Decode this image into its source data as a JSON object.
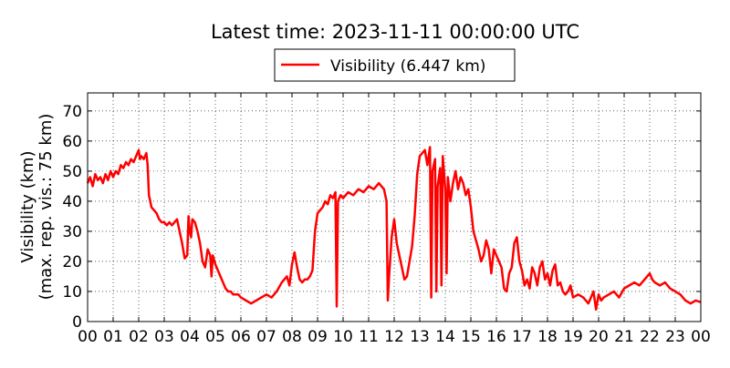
{
  "chart_data": {
    "type": "line",
    "title": "Latest time: 2023-11-11 00:00:00 UTC",
    "ylabel_line1": "Visibility (km)",
    "ylabel_line2": "(max. rep. vis.: 75 km)",
    "xlabel": "",
    "ylim": [
      0,
      76
    ],
    "xlim": [
      0,
      24
    ],
    "grid": true,
    "legend_placement": "top-center",
    "x_ticks": [
      "00",
      "01",
      "02",
      "03",
      "04",
      "05",
      "06",
      "07",
      "08",
      "09",
      "10",
      "11",
      "12",
      "13",
      "14",
      "15",
      "16",
      "17",
      "18",
      "19",
      "20",
      "21",
      "22",
      "23",
      "00"
    ],
    "y_ticks": [
      0,
      10,
      20,
      30,
      40,
      50,
      60,
      70
    ],
    "series": [
      {
        "name": "Visibility (6.447 km)",
        "color": "#ff0000",
        "x": [
          0,
          0.1,
          0.2,
          0.3,
          0.4,
          0.5,
          0.6,
          0.7,
          0.8,
          0.9,
          1.0,
          1.1,
          1.2,
          1.3,
          1.4,
          1.5,
          1.6,
          1.7,
          1.8,
          1.9,
          2.0,
          2.05,
          2.1,
          2.2,
          2.3,
          2.35,
          2.4,
          2.5,
          2.6,
          2.7,
          2.8,
          2.9,
          3.0,
          3.1,
          3.2,
          3.3,
          3.4,
          3.5,
          3.6,
          3.7,
          3.8,
          3.9,
          3.95,
          4.0,
          4.05,
          4.1,
          4.2,
          4.3,
          4.4,
          4.5,
          4.6,
          4.7,
          4.8,
          4.85,
          4.9,
          5.0,
          5.1,
          5.2,
          5.3,
          5.4,
          5.5,
          5.6,
          5.7,
          5.8,
          5.9,
          6.0,
          6.2,
          6.4,
          6.6,
          6.8,
          7.0,
          7.2,
          7.4,
          7.6,
          7.8,
          7.9,
          8.0,
          8.1,
          8.2,
          8.3,
          8.4,
          8.5,
          8.6,
          8.7,
          8.8,
          8.9,
          9.0,
          9.1,
          9.2,
          9.3,
          9.4,
          9.5,
          9.6,
          9.7,
          9.75,
          9.8,
          9.9,
          10.0,
          10.2,
          10.4,
          10.6,
          10.8,
          11.0,
          11.2,
          11.4,
          11.5,
          11.6,
          11.7,
          11.75,
          11.8,
          11.9,
          12.0,
          12.1,
          12.2,
          12.3,
          12.4,
          12.5,
          12.6,
          12.7,
          12.8,
          12.9,
          13.0,
          13.1,
          13.2,
          13.3,
          13.4,
          13.45,
          13.5,
          13.6,
          13.65,
          13.7,
          13.8,
          13.85,
          13.9,
          14.0,
          14.05,
          14.1,
          14.2,
          14.3,
          14.4,
          14.5,
          14.6,
          14.7,
          14.8,
          14.9,
          15.0,
          15.1,
          15.2,
          15.3,
          15.4,
          15.5,
          15.6,
          15.7,
          15.8,
          15.9,
          16.0,
          16.1,
          16.2,
          16.3,
          16.4,
          16.5,
          16.6,
          16.7,
          16.8,
          16.9,
          17.0,
          17.1,
          17.2,
          17.3,
          17.4,
          17.5,
          17.6,
          17.7,
          17.8,
          17.9,
          18.0,
          18.1,
          18.2,
          18.3,
          18.4,
          18.5,
          18.6,
          18.7,
          18.8,
          18.9,
          19.0,
          19.2,
          19.4,
          19.6,
          19.8,
          19.9,
          20.0,
          20.1,
          20.2,
          20.4,
          20.6,
          20.8,
          21.0,
          21.2,
          21.4,
          21.6,
          21.8,
          22.0,
          22.1,
          22.2,
          22.4,
          22.6,
          22.8,
          23.0,
          23.2,
          23.4,
          23.6,
          23.8,
          24.0
        ],
        "y": [
          46,
          48,
          45,
          49,
          47,
          48,
          46,
          49,
          47,
          50,
          48,
          50,
          49,
          52,
          51,
          53,
          52,
          54,
          53,
          55,
          57,
          54,
          55,
          54,
          56,
          52,
          42,
          38,
          37,
          36,
          34,
          33,
          33,
          32,
          33,
          32,
          33,
          34,
          30,
          26,
          21,
          22,
          35,
          30,
          28,
          34,
          33,
          30,
          26,
          20,
          18,
          24,
          22,
          15,
          22,
          19,
          17,
          15,
          13,
          11,
          10,
          10,
          9,
          9,
          9,
          8,
          7,
          6,
          7,
          8,
          9,
          8,
          10,
          13,
          15,
          12,
          19,
          23,
          18,
          14,
          13,
          14,
          14,
          15,
          17,
          30,
          36,
          37,
          38,
          40,
          39,
          42,
          41,
          43,
          5,
          40,
          42,
          41,
          43,
          42,
          44,
          43,
          45,
          44,
          46,
          45,
          44,
          40,
          7,
          15,
          28,
          34,
          26,
          22,
          18,
          14,
          15,
          20,
          25,
          35,
          49,
          55,
          56,
          57,
          52,
          58,
          8,
          50,
          54,
          10,
          45,
          51,
          12,
          55,
          44,
          16,
          48,
          40,
          46,
          50,
          44,
          48,
          46,
          42,
          44,
          38,
          30,
          27,
          24,
          20,
          22,
          27,
          24,
          16,
          24,
          22,
          20,
          18,
          11,
          10,
          16,
          18,
          26,
          28,
          20,
          17,
          12,
          14,
          11,
          18,
          16,
          12,
          18,
          20,
          14,
          16,
          12,
          17,
          19,
          12,
          13,
          10,
          9,
          10,
          12,
          8,
          9,
          8,
          6,
          10,
          4,
          9,
          7,
          8,
          9,
          10,
          8,
          11,
          12,
          13,
          12,
          14,
          16,
          14,
          13,
          12,
          13,
          11,
          10,
          9,
          7,
          6,
          7,
          6.447
        ]
      }
    ]
  }
}
